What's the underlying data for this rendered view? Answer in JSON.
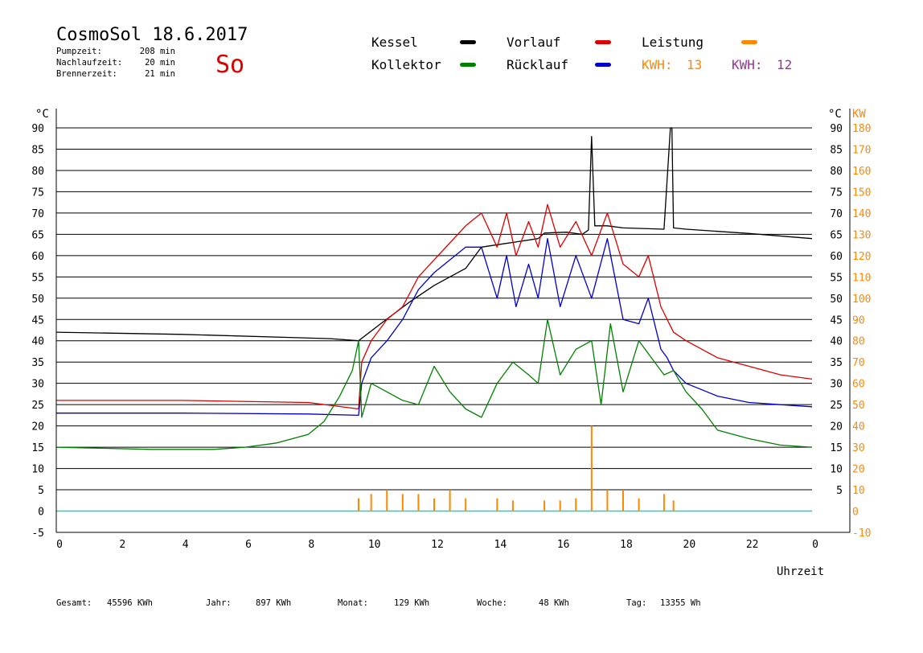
{
  "header": {
    "title": "CosmoSol 18.6.2017",
    "day": "So",
    "stats": [
      {
        "label": "Pumpzeit:",
        "value": "208 min"
      },
      {
        "label": "Nachlaufzeit:",
        "value": "20 min"
      },
      {
        "label": "Brennerzeit:",
        "value": "21 min"
      }
    ]
  },
  "legend": [
    {
      "label": "Kessel",
      "color": "#000000"
    },
    {
      "label": "Vorlauf",
      "color": "#dd0000"
    },
    {
      "label": "Leistung",
      "color": "#ff8800"
    },
    {
      "label": "Kollektor",
      "color": "#008000"
    },
    {
      "label": "Rücklauf",
      "color": "#0000cc"
    }
  ],
  "kwh": [
    {
      "label": "KWH:",
      "value": "13",
      "color": "#ff8800"
    },
    {
      "label": "KWH:",
      "value": "12",
      "color": "#993399"
    }
  ],
  "footer": [
    {
      "label": "Gesamt:",
      "value": "45596 KWh"
    },
    {
      "label": "Jahr:",
      "value": "897 KWh"
    },
    {
      "label": "Monat:",
      "value": "129 KWh"
    },
    {
      "label": "Woche:",
      "value": "48 KWh"
    },
    {
      "label": "Tag:",
      "value": "13355 Wh"
    }
  ],
  "chart_data": {
    "type": "line",
    "xlabel": "Uhrzeit",
    "ylabel_left": "°C",
    "ylabel_right": [
      "°C",
      "KW"
    ],
    "xlim": [
      0,
      24
    ],
    "ylim": [
      -5,
      90
    ],
    "y2lim": [
      -10,
      180
    ],
    "x_ticks": [
      "0",
      "2",
      "4",
      "6",
      "8",
      "10",
      "12",
      "14",
      "16",
      "18",
      "20",
      "22",
      "0"
    ],
    "y_ticks": [
      "90",
      "85",
      "80",
      "75",
      "70",
      "65",
      "60",
      "55",
      "50",
      "45",
      "40",
      "35",
      "30",
      "25",
      "20",
      "15",
      "10",
      "5",
      "0",
      "-5"
    ],
    "y_ticks_right": [
      "90",
      "85",
      "80",
      "75",
      "70",
      "65",
      "60",
      "55",
      "50",
      "45",
      "40",
      "35",
      "30",
      "25",
      "20",
      "15",
      "10",
      "5"
    ],
    "y2_ticks": [
      "180",
      "170",
      "160",
      "150",
      "140",
      "130",
      "120",
      "110",
      "100",
      "90",
      "80",
      "70",
      "60",
      "50",
      "40",
      "30",
      "20",
      "10",
      "0",
      "-10"
    ],
    "grid": true,
    "series": [
      {
        "name": "Kessel",
        "color": "#000000",
        "x": [
          0,
          4,
          8.7,
          9.6,
          10.3,
          11.2,
          12.0,
          13.0,
          13.5,
          15.3,
          15.5,
          16.2,
          16.7,
          16.9,
          17.0,
          17.1,
          17.5,
          18.0,
          19.3,
          19.5,
          19.55,
          19.6,
          20,
          22,
          24
        ],
        "y": [
          42,
          41.5,
          40.5,
          40,
          44,
          49,
          53,
          57,
          62,
          64,
          65.3,
          65.5,
          65,
          66,
          88,
          67,
          67,
          66.5,
          66.2,
          90,
          90,
          66.5,
          66.2,
          65.2,
          64
        ]
      },
      {
        "name": "Vorlauf",
        "color": "#dd0000",
        "x": [
          0,
          4,
          8,
          9.6,
          9.7,
          10.0,
          10.5,
          11.0,
          11.5,
          12.0,
          12.5,
          13.0,
          13.5,
          14.0,
          14.3,
          14.6,
          15.0,
          15.3,
          15.6,
          16.0,
          16.5,
          17.0,
          17.5,
          18.0,
          18.5,
          18.8,
          19.2,
          19.4,
          19.6,
          20,
          21,
          22,
          23,
          24
        ],
        "y": [
          26,
          26,
          25.5,
          24,
          35,
          40,
          45,
          48,
          55,
          59,
          63,
          67,
          70,
          62,
          70,
          60,
          68,
          62,
          72,
          62,
          68,
          60,
          70,
          58,
          55,
          60,
          48,
          45,
          42,
          40,
          36,
          34,
          32,
          31
        ]
      },
      {
        "name": "Rücklauf",
        "color": "#0000cc",
        "x": [
          0,
          4,
          8,
          9.6,
          9.7,
          10.0,
          10.5,
          11.0,
          11.5,
          12.0,
          12.5,
          13.0,
          13.5,
          14.0,
          14.3,
          14.6,
          15.0,
          15.3,
          15.6,
          16.0,
          16.5,
          17.0,
          17.5,
          18.0,
          18.5,
          18.8,
          19.2,
          19.4,
          19.6,
          20,
          21,
          22,
          23,
          24
        ],
        "y": [
          23,
          23,
          22.8,
          22.5,
          30,
          36,
          40,
          45,
          52,
          56,
          59,
          62,
          62,
          50,
          60,
          48,
          58,
          50,
          64,
          48,
          60,
          50,
          64,
          45,
          44,
          50,
          38,
          36,
          33,
          30,
          27,
          25.5,
          25,
          24.5
        ]
      },
      {
        "name": "Kollektor",
        "color": "#008000",
        "x": [
          0,
          3,
          5,
          6,
          7,
          8,
          8.5,
          9.0,
          9.4,
          9.6,
          9.7,
          10.0,
          10.5,
          11.0,
          11.5,
          12.0,
          12.5,
          13.0,
          13.5,
          14.0,
          14.5,
          15.0,
          15.3,
          15.6,
          16.0,
          16.5,
          17.0,
          17.3,
          17.6,
          18.0,
          18.5,
          19.0,
          19.3,
          19.6,
          20.0,
          20.5,
          21.0,
          22.0,
          23.0,
          24.0
        ],
        "y": [
          15,
          14.5,
          14.5,
          15,
          16,
          18,
          21,
          27,
          33,
          40,
          22,
          30,
          28,
          26,
          25,
          34,
          28,
          24,
          22,
          30,
          35,
          32,
          30,
          45,
          32,
          38,
          40,
          25,
          44,
          28,
          40,
          35,
          32,
          33,
          28,
          24,
          19,
          17,
          15.5,
          15
        ]
      }
    ],
    "series_bars": [
      {
        "name": "Leistung",
        "color": "#ff8800",
        "unit": "KW",
        "x": [
          9.6,
          10.0,
          10.5,
          11.0,
          11.5,
          12.0,
          12.5,
          13.0,
          14.0,
          14.5,
          15.5,
          16.0,
          16.5,
          17.0,
          17.5,
          18.0,
          18.5,
          19.3,
          19.6
        ],
        "y": [
          6,
          8,
          10,
          8,
          8,
          6,
          10,
          6,
          6,
          5,
          5,
          5,
          6,
          40,
          10,
          10,
          6,
          8,
          5
        ]
      }
    ]
  }
}
